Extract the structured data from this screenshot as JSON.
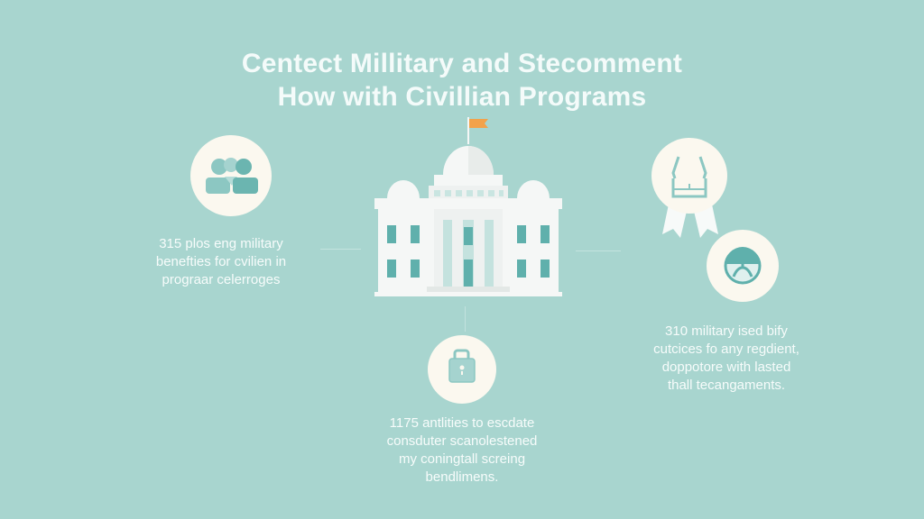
{
  "title": {
    "line1": "Centect Millitary and Stecomment",
    "line2": "How with Civillian Programs"
  },
  "left": {
    "icon": "people-group-icon",
    "lines": [
      "315 plos eng military",
      "benefties for cvilien in",
      "prograar celerroges"
    ]
  },
  "center": {
    "icon": "government-building-icon",
    "flag_color": "#f2a24a"
  },
  "bottom": {
    "icon": "lock-icon",
    "lines": [
      "1175 antlities to escdate",
      "consduter scanolestened",
      "my coningtall screing",
      "bendlimens."
    ]
  },
  "right": {
    "icons": [
      "award-ribbon-icon",
      "face-icon"
    ],
    "lines": [
      "310 military ised bify",
      "cutcices fo any regdient,",
      "doppotore with lasted",
      "thall tecangaments."
    ]
  },
  "colors": {
    "background": "#a8d5cf",
    "circle": "#fbf8ef",
    "icon": "#6bb5b0",
    "building": "#f5f7f6"
  }
}
